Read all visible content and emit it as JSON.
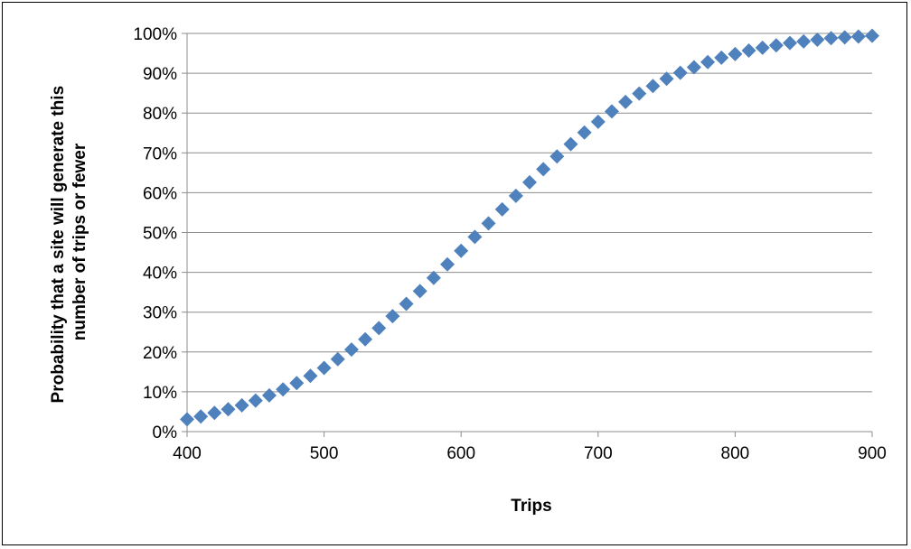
{
  "chart_data": {
    "type": "scatter",
    "title": "",
    "xlabel": "Trips",
    "ylabel": [
      "Probability that a site will generate this",
      "number of trips or fewer"
    ],
    "xlim": [
      400,
      900
    ],
    "ylim": [
      0,
      1
    ],
    "x_ticks": [
      400,
      500,
      600,
      700,
      800,
      900
    ],
    "x_tick_labels": [
      "400",
      "500",
      "600",
      "700",
      "800",
      "900"
    ],
    "y_ticks": [
      0,
      0.1,
      0.2,
      0.3,
      0.4,
      0.5,
      0.6,
      0.7,
      0.8,
      0.9,
      1.0
    ],
    "y_tick_labels": [
      "0%",
      "10%",
      "20%",
      "30%",
      "40%",
      "50%",
      "60%",
      "70%",
      "80%",
      "90%",
      "100%"
    ],
    "grid": "horizontal",
    "legend": "none",
    "marker": "diamond",
    "color": "#4F81BD",
    "x": [
      400,
      410,
      420,
      430,
      440,
      450,
      460,
      470,
      480,
      490,
      500,
      510,
      520,
      530,
      540,
      550,
      560,
      570,
      580,
      590,
      600,
      610,
      620,
      630,
      640,
      650,
      660,
      670,
      680,
      690,
      700,
      710,
      720,
      730,
      740,
      750,
      760,
      770,
      780,
      790,
      800,
      810,
      820,
      830,
      840,
      850,
      860,
      870,
      880,
      890,
      900
    ],
    "y": [
      0.031,
      0.038,
      0.047,
      0.056,
      0.066,
      0.078,
      0.091,
      0.106,
      0.122,
      0.14,
      0.16,
      0.182,
      0.206,
      0.232,
      0.26,
      0.29,
      0.321,
      0.353,
      0.386,
      0.42,
      0.454,
      0.489,
      0.523,
      0.558,
      0.592,
      0.626,
      0.659,
      0.691,
      0.722,
      0.751,
      0.778,
      0.804,
      0.828,
      0.849,
      0.868,
      0.886,
      0.901,
      0.915,
      0.928,
      0.939,
      0.948,
      0.957,
      0.964,
      0.97,
      0.976,
      0.98,
      0.984,
      0.988,
      0.99,
      0.992,
      0.994
    ]
  }
}
